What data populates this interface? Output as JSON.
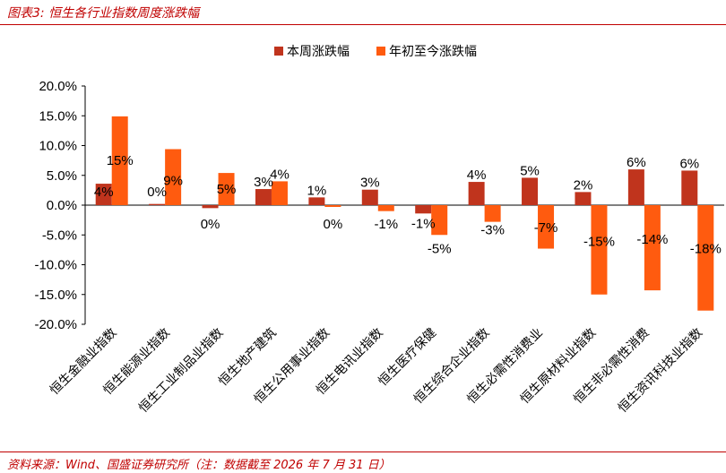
{
  "header": {
    "title": "图表3:  恒生各行业指数周度涨跌幅"
  },
  "footer": {
    "source": "资料来源：Wind、国盛证券研究所（注：数据截至 2026 年 7 月 31 日）"
  },
  "chart_data": {
    "type": "bar",
    "title": "",
    "xlabel": "",
    "ylabel": "",
    "ylim": [
      -20,
      20
    ],
    "yticks": [
      20,
      15,
      10,
      5,
      0,
      -5,
      -10,
      -15,
      -20
    ],
    "ytick_labels": [
      "20.0%",
      "15.0%",
      "10.0%",
      "5.0%",
      "0.0%",
      "-5.0%",
      "-10.0%",
      "-15.0%",
      "-20.0%"
    ],
    "legend_position": "top",
    "grid": false,
    "categories": [
      "恒生金融业指数",
      "恒生能源业指数",
      "恒生工业制品业指数",
      "恒生地产建筑",
      "恒生公用事业指数",
      "恒生电讯业指数",
      "恒生医疗保健",
      "恒生综合企业指数",
      "恒生必需性消费业",
      "恒生原材料业指数",
      "恒生非必需性消费",
      "恒生资讯科技业指数"
    ],
    "series": [
      {
        "name": "本周涨跌幅",
        "color": "#c0341d",
        "values": [
          3.6,
          0.2,
          -0.5,
          2.7,
          1.3,
          2.6,
          -1.4,
          3.9,
          4.6,
          2.2,
          6.0,
          5.8
        ],
        "labels": [
          "4%",
          "0%",
          "0%",
          "3%",
          "1%",
          "3%",
          "-1%",
          "4%",
          "5%",
          "2%",
          "6%",
          "6%"
        ]
      },
      {
        "name": "年初至今涨跌幅",
        "color": "#ff5b0f",
        "values": [
          14.9,
          9.4,
          5.4,
          4.0,
          -0.3,
          -1.0,
          -5.0,
          -2.8,
          -7.3,
          -15.0,
          -14.3,
          -17.7
        ],
        "labels": [
          "15%",
          "9%",
          "5%",
          "4%",
          "0%",
          "-1%",
          "-5%",
          "-3%",
          "-7%",
          "-15%",
          "-14%",
          "-18%"
        ]
      }
    ]
  }
}
